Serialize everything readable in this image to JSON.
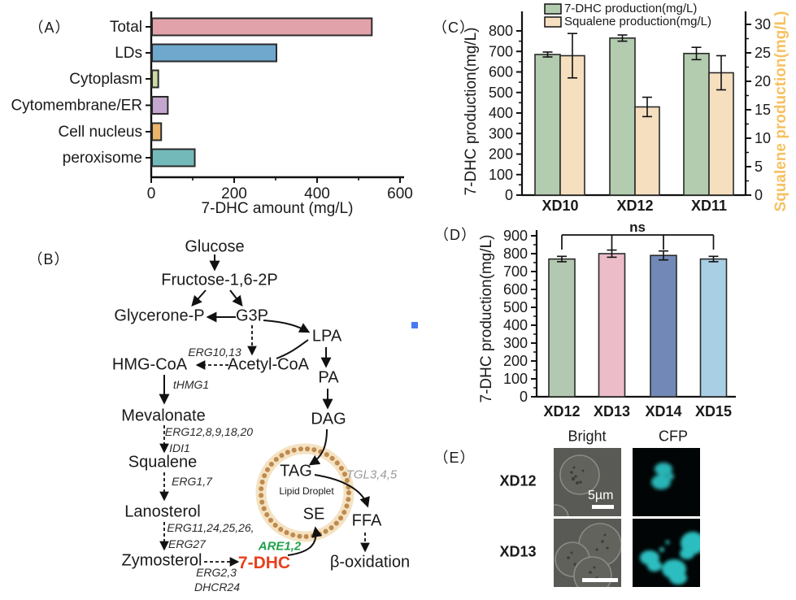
{
  "figure": {
    "panel_labels": {
      "a": "（A）",
      "b": "（B）",
      "c": "（C）",
      "d": "（D）",
      "e": "（E）"
    }
  },
  "colors": {
    "axis": "#1a1a1a",
    "bar_stroke": "#2a2a2a",
    "dhc_red": "#e8401c",
    "are_green": "#21a04b",
    "tgl_gray": "#9a9a9a",
    "squalene_axis_label": "#f6c161",
    "stray_blue_square": "#4879f2",
    "cfp_cyan": "#2fc7c9",
    "bright_bg": "#595955"
  },
  "chart_data": [
    {
      "id": "A",
      "type": "bar",
      "orientation": "horizontal",
      "categories": [
        "Total",
        "LDs",
        "Cytoplasm",
        "Cytomembrane/ER",
        "Cell nucleus",
        "peroxisome"
      ],
      "values": [
        530,
        300,
        15,
        38,
        22,
        103
      ],
      "bar_colors": [
        "#e2a2aa",
        "#6fa7cd",
        "#c9daa5",
        "#c5a6cf",
        "#eab469",
        "#74b9ba"
      ],
      "xlabel": "7-DHC amount (mg/L)",
      "xticks": [
        0,
        200,
        400,
        600
      ],
      "minor_xticks": [
        100,
        300,
        500
      ],
      "xlim": [
        0,
        600
      ],
      "grid": false
    },
    {
      "id": "C",
      "type": "bar",
      "categories": [
        "XD10",
        "XD12",
        "XD11"
      ],
      "series": [
        {
          "name": "7-DHC production(mg/L)",
          "axis": "left",
          "color": "#b3cbaf",
          "values": [
            685,
            765,
            690
          ],
          "errors": [
            12,
            15,
            30
          ]
        },
        {
          "name": "Squalene production(mg/L)",
          "axis": "right",
          "color": "#f5dfbf",
          "values": [
            24.5,
            15.5,
            21.5
          ],
          "errors": [
            3.9,
            1.7,
            3.0
          ]
        }
      ],
      "left_axis": {
        "label": "7-DHC production(mg/L)",
        "ticks": [
          0,
          100,
          200,
          300,
          400,
          500,
          600,
          700,
          800
        ],
        "lim": [
          0,
          800
        ]
      },
      "right_axis": {
        "label": "Squalene production(mg/L)",
        "ticks": [
          0,
          5,
          10,
          15,
          20,
          25,
          30
        ],
        "lim": [
          0,
          30
        ],
        "label_color": "#f6c161"
      },
      "legend_position": "top",
      "grid": false
    },
    {
      "id": "D",
      "type": "bar",
      "categories": [
        "XD12",
        "XD13",
        "XD14",
        "XD15"
      ],
      "values": [
        770,
        800,
        790,
        770
      ],
      "errors": [
        15,
        20,
        25,
        15
      ],
      "bar_colors": [
        "#b3c8b0",
        "#ecbcc8",
        "#7289b8",
        "#a9cfe5"
      ],
      "ylabel": "7-DHC production(mg/L)",
      "yticks": [
        0,
        100,
        200,
        300,
        400,
        500,
        600,
        700,
        800,
        900
      ],
      "ylim": [
        0,
        900
      ],
      "annotation": "ns",
      "grid": false
    }
  ],
  "pathway": {
    "nodes": {
      "glucose": "Glucose",
      "fructose": "Fructose-1,6-2P",
      "glycerone_p": "Glycerone-P",
      "g3p": "G3P",
      "lpa": "LPA",
      "acetyl_coa": "Acetyl-CoA",
      "hmg_coa": "HMG-CoA",
      "pa": "PA",
      "mevalonate": "Mevalonate",
      "dag": "DAG",
      "squalene": "Squalene",
      "lanosterol": "Lanosterol",
      "zymosterol": "Zymosterol",
      "dhc7": "7-DHC",
      "tag": "TAG",
      "lipid_droplet": "Lipid Droplet",
      "se": "SE",
      "ffa": "FFA",
      "beta_oxidation": "β-oxidation"
    },
    "enzymes": {
      "erg10_13": "ERG10,13",
      "thmg1": "tHMG1",
      "erg12_8_9_18_20": "ERG12,8,9,18,20",
      "idi1": "IDI1",
      "erg1_7": "ERG1,7",
      "erg11_24_25_26": "ERG11,24,25,26,",
      "erg27": "ERG27",
      "erg2_3": "ERG2,3",
      "dhcr24": "DHCR24",
      "are1_2": "ARE1,2",
      "tgl3_4_5": "TGL3,4,5"
    }
  },
  "microscopy": {
    "col_headers": [
      "Bright",
      "CFP"
    ],
    "rows": [
      "XD12",
      "XD13"
    ],
    "scale_bar": "5µm"
  }
}
